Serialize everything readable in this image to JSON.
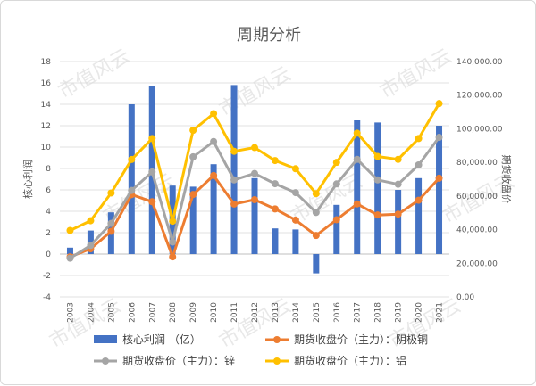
{
  "chart_data": {
    "type": "bar+line",
    "title": "周期分析",
    "ylabel_left": "核心利润",
    "ylabel_right": "期货收盘价",
    "categories": [
      "2003",
      "2004",
      "2005",
      "2006",
      "2007",
      "2008",
      "2009",
      "2010",
      "2011",
      "2012",
      "2013",
      "2014",
      "2015",
      "2016",
      "2017",
      "2018",
      "2019",
      "2020",
      "2021"
    ],
    "left_axis": {
      "min": -4,
      "max": 18,
      "step": 2,
      "ticks": [
        "-4",
        "-2",
        "0",
        "2",
        "4",
        "6",
        "8",
        "10",
        "12",
        "14",
        "16",
        "18"
      ]
    },
    "right_axis": {
      "min": 0,
      "max": 140000,
      "step": 20000,
      "ticks": [
        "0.00",
        "20,000.00",
        "40,000.00",
        "60,000.00",
        "80,000.00",
        "100,000.00",
        "120,000.00",
        "140,000.00"
      ]
    },
    "bar_series": {
      "name": "核心利润 （亿）",
      "color": "#4472c4",
      "values": [
        0.6,
        2.2,
        3.9,
        14.0,
        15.7,
        6.4,
        6.3,
        8.4,
        15.8,
        7.1,
        2.4,
        2.3,
        -1.8,
        4.6,
        12.5,
        12.3,
        6.0,
        7.1,
        12.0
      ]
    },
    "line_series": [
      {
        "name": "期货收盘价（主力）：阴极铜",
        "color": "#ed7d31",
        "values": [
          23800,
          28600,
          39000,
          60800,
          56600,
          23800,
          60900,
          72200,
          55200,
          57800,
          52300,
          45700,
          36500,
          45900,
          55300,
          48700,
          49200,
          57500,
          70600
        ]
      },
      {
        "name": "期货收盘价（主力）：锌",
        "color": "#a5a5a5",
        "values": [
          23000,
          30600,
          43700,
          63300,
          74300,
          32600,
          83300,
          92400,
          69600,
          73400,
          67300,
          62000,
          50200,
          67200,
          81800,
          69600,
          67000,
          78500,
          94900
        ]
      },
      {
        "name": "期货收盘价（主力）：铝",
        "color": "#ffc000",
        "values": [
          39500,
          45300,
          61800,
          81700,
          94200,
          45000,
          99100,
          109000,
          86600,
          88800,
          81100,
          76200,
          61400,
          80000,
          97400,
          83500,
          81800,
          94200,
          115000
        ]
      }
    ],
    "grid": true,
    "legend_position": "bottom"
  },
  "watermark_text": "市值风云"
}
